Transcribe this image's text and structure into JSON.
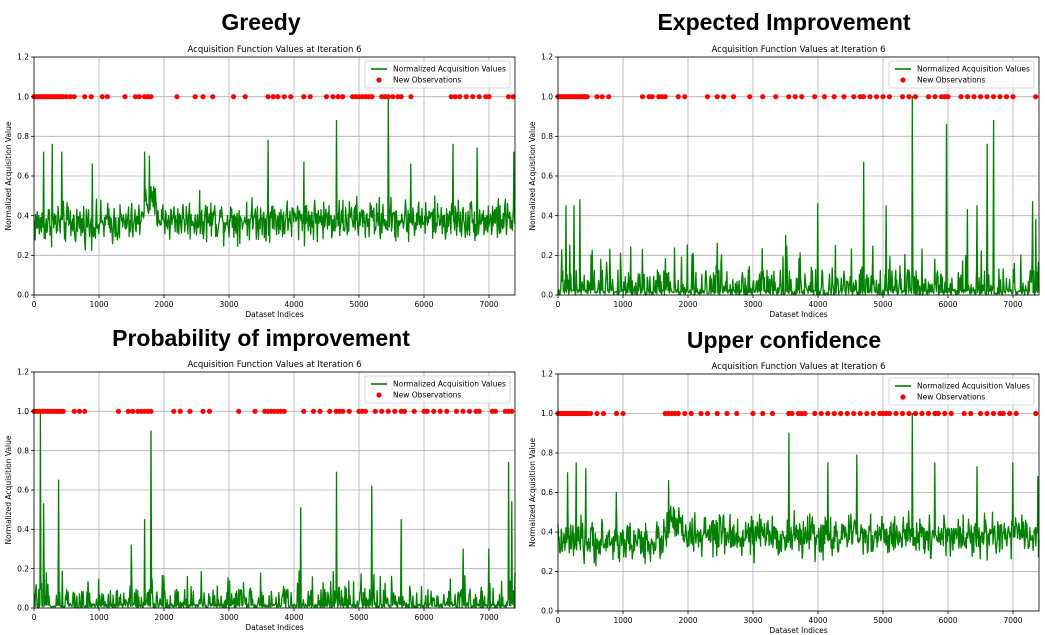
{
  "chart_data": [
    {
      "type": "line",
      "heading": "Greedy",
      "title": "Acquisition Function Values at Iteration 6",
      "xlabel": "Dataset Indices",
      "ylabel": "Normalized Acquisition Value",
      "xlim": [
        0,
        7400
      ],
      "ylim": [
        0,
        1.2
      ],
      "xticks": [
        0,
        1000,
        2000,
        3000,
        4000,
        5000,
        6000,
        7000
      ],
      "yticks": [
        0.0,
        0.2,
        0.4,
        0.6,
        0.8,
        1.0,
        1.2
      ],
      "grid": true,
      "legend_position": "top-right",
      "series": [
        {
          "name": "Normalized Acquisition Values",
          "kind": "line",
          "color": "#008000",
          "profile": {
            "base": [
              [
                0,
                0.36
              ],
              [
                1600,
                0.36
              ],
              [
                1700,
                0.46
              ],
              [
                1850,
                0.46
              ],
              [
                1950,
                0.38
              ],
              [
                7400,
                0.38
              ]
            ],
            "noise": 0.1,
            "min": 0.18,
            "peaks": [
              [
                150,
                0.72
              ],
              [
                280,
                0.76
              ],
              [
                430,
                0.72
              ],
              [
                900,
                0.66
              ],
              [
                1700,
                0.72
              ],
              [
                1780,
                0.7
              ],
              [
                3600,
                0.78
              ],
              [
                4150,
                0.67
              ],
              [
                4650,
                0.88
              ],
              [
                5450,
                1.0
              ],
              [
                5800,
                0.66
              ],
              [
                6450,
                0.76
              ],
              [
                6820,
                0.74
              ],
              [
                7380,
                0.72
              ]
            ]
          }
        },
        {
          "name": "New Observations",
          "kind": "scatter",
          "color": "#ff0000",
          "y": 1.0,
          "x": [
            0,
            30,
            60,
            90,
            120,
            150,
            180,
            210,
            240,
            270,
            300,
            330,
            360,
            390,
            420,
            450,
            500,
            560,
            620,
            780,
            880,
            1050,
            1130,
            1400,
            1560,
            1620,
            1700,
            1750,
            1800,
            2200,
            2480,
            2600,
            2750,
            3070,
            3250,
            3600,
            3680,
            3750,
            3850,
            3950,
            4150,
            4250,
            4500,
            4600,
            4680,
            4750,
            4900,
            4950,
            5000,
            5050,
            5100,
            5150,
            5200,
            5350,
            5400,
            5450,
            5520,
            5600,
            5650,
            5800,
            6420,
            6480,
            6550,
            6650,
            6750,
            6850,
            6950,
            7000,
            7300,
            7370
          ]
        }
      ]
    },
    {
      "type": "line",
      "heading": "Expected Improvement",
      "title": "Acquisition Function Values at Iteration 6",
      "xlabel": "Dataset Indices",
      "ylabel": "Normalized Acquisition Value",
      "xlim": [
        0,
        7400
      ],
      "ylim": [
        0,
        1.2
      ],
      "xticks": [
        0,
        1000,
        2000,
        3000,
        4000,
        5000,
        6000,
        7000
      ],
      "yticks": [
        0.0,
        0.2,
        0.4,
        0.6,
        0.8,
        1.0,
        1.2
      ],
      "grid": true,
      "legend_position": "top-right",
      "series": [
        {
          "name": "Normalized Acquisition Values",
          "kind": "line",
          "color": "#008000",
          "profile": {
            "base": [
              [
                0,
                0.0
              ],
              [
                7400,
                0.0
              ]
            ],
            "noise": 0.08,
            "min": 0.0,
            "spiky": true,
            "peaks": [
              [
                120,
                0.45
              ],
              [
                250,
                0.45
              ],
              [
                340,
                0.48
              ],
              [
                800,
                0.23
              ],
              [
                1300,
                0.23
              ],
              [
                2450,
                0.26
              ],
              [
                3500,
                0.3
              ],
              [
                4000,
                0.46
              ],
              [
                4700,
                0.67
              ],
              [
                5050,
                0.45
              ],
              [
                5450,
                1.0
              ],
              [
                5980,
                0.86
              ],
              [
                6300,
                0.43
              ],
              [
                6450,
                0.45
              ],
              [
                6600,
                0.76
              ],
              [
                6700,
                0.88
              ],
              [
                7300,
                0.47
              ],
              [
                7350,
                0.38
              ]
            ]
          }
        },
        {
          "name": "New Observations",
          "kind": "scatter",
          "color": "#ff0000",
          "y": 1.0,
          "x": [
            0,
            30,
            60,
            90,
            120,
            150,
            180,
            210,
            240,
            270,
            300,
            330,
            360,
            390,
            420,
            450,
            600,
            680,
            780,
            1300,
            1400,
            1450,
            1550,
            1600,
            1650,
            1850,
            1950,
            2300,
            2450,
            2550,
            2700,
            2950,
            3150,
            3350,
            3550,
            3650,
            3750,
            3950,
            4100,
            4250,
            4400,
            4550,
            4650,
            4700,
            4800,
            4900,
            5000,
            5100,
            5300,
            5400,
            5500,
            5700,
            5800,
            5900,
            5950,
            6000,
            6200,
            6300,
            6400,
            6500,
            6600,
            6700,
            6800,
            6900,
            7000,
            7350
          ]
        }
      ]
    },
    {
      "type": "line",
      "heading": "Probability of improvement",
      "title": "Acquisition Function Values at Iteration 6",
      "xlabel": "Dataset Indices",
      "ylabel": "Normalized Acquisition Value",
      "xlim": [
        0,
        7400
      ],
      "ylim": [
        0,
        1.2
      ],
      "xticks": [
        0,
        1000,
        2000,
        3000,
        4000,
        5000,
        6000,
        7000
      ],
      "yticks": [
        0.0,
        0.2,
        0.4,
        0.6,
        0.8,
        1.0,
        1.2
      ],
      "grid": true,
      "legend_position": "top-right",
      "series": [
        {
          "name": "Normalized Acquisition Values",
          "kind": "line",
          "color": "#008000",
          "profile": {
            "base": [
              [
                0,
                0.0
              ],
              [
                7400,
                0.0
              ]
            ],
            "noise": 0.06,
            "min": 0.0,
            "spiky": true,
            "peaks": [
              [
                100,
                1.0
              ],
              [
                150,
                0.53
              ],
              [
                380,
                0.65
              ],
              [
                1500,
                0.32
              ],
              [
                1700,
                0.45
              ],
              [
                1800,
                0.9
              ],
              [
                4100,
                0.51
              ],
              [
                4650,
                0.69
              ],
              [
                5200,
                0.62
              ],
              [
                5650,
                0.45
              ],
              [
                6600,
                0.3
              ],
              [
                7000,
                0.3
              ],
              [
                7300,
                0.74
              ],
              [
                7350,
                0.54
              ]
            ]
          }
        },
        {
          "name": "New Observations",
          "kind": "scatter",
          "color": "#ff0000",
          "y": 1.0,
          "x": [
            0,
            30,
            60,
            90,
            120,
            150,
            180,
            210,
            240,
            270,
            300,
            330,
            360,
            390,
            420,
            450,
            620,
            700,
            780,
            1300,
            1450,
            1520,
            1600,
            1650,
            1700,
            1750,
            1800,
            2150,
            2250,
            2400,
            2600,
            2700,
            3150,
            3400,
            3550,
            3600,
            3650,
            3700,
            3750,
            3800,
            3850,
            4150,
            4300,
            4400,
            4550,
            4650,
            4700,
            4750,
            4850,
            5000,
            5050,
            5100,
            5250,
            5350,
            5450,
            5550,
            5650,
            5700,
            5850,
            6000,
            6050,
            6150,
            6250,
            6350,
            6500,
            6600,
            6700,
            6800,
            6850,
            7050,
            7100,
            7250,
            7300,
            7350
          ]
        }
      ]
    },
    {
      "type": "line",
      "heading": "Upper confidence",
      "title": "Acquisition Function Values at Iteration 6",
      "xlabel": "Dataset Indices",
      "ylabel": "Normalized Acquisition Value",
      "xlim": [
        0,
        7400
      ],
      "ylim": [
        0,
        1.2
      ],
      "xticks": [
        0,
        1000,
        2000,
        3000,
        4000,
        5000,
        6000,
        7000
      ],
      "yticks": [
        0.0,
        0.2,
        0.4,
        0.6,
        0.8,
        1.0,
        1.2
      ],
      "grid": true,
      "legend_position": "top-right",
      "series": [
        {
          "name": "Normalized Acquisition Values",
          "kind": "line",
          "color": "#008000",
          "profile": {
            "base": [
              [
                0,
                0.35
              ],
              [
                1600,
                0.35
              ],
              [
                1700,
                0.44
              ],
              [
                1850,
                0.44
              ],
              [
                1950,
                0.38
              ],
              [
                7400,
                0.38
              ]
            ],
            "noise": 0.1,
            "min": 0.16,
            "peaks": [
              [
                150,
                0.7
              ],
              [
                280,
                0.75
              ],
              [
                430,
                0.72
              ],
              [
                900,
                0.6
              ],
              [
                1700,
                0.66
              ],
              [
                3550,
                0.9
              ],
              [
                4150,
                0.75
              ],
              [
                4600,
                0.79
              ],
              [
                5450,
                1.0
              ],
              [
                5800,
                0.75
              ],
              [
                6450,
                0.73
              ],
              [
                7000,
                0.75
              ],
              [
                7380,
                0.68
              ]
            ]
          }
        },
        {
          "name": "New Observations",
          "kind": "scatter",
          "color": "#ff0000",
          "y": 1.0,
          "x": [
            0,
            30,
            60,
            90,
            120,
            150,
            180,
            210,
            240,
            270,
            300,
            330,
            360,
            390,
            420,
            450,
            500,
            600,
            700,
            900,
            1000,
            1650,
            1700,
            1750,
            1800,
            1850,
            1950,
            2050,
            2200,
            2300,
            2450,
            2600,
            2750,
            3000,
            3150,
            3300,
            3550,
            3600,
            3700,
            3750,
            3800,
            3950,
            4050,
            4150,
            4250,
            4350,
            4450,
            4550,
            4650,
            4750,
            4850,
            4950,
            5000,
            5050,
            5100,
            5200,
            5300,
            5400,
            5500,
            5600,
            5700,
            5800,
            5850,
            5950,
            6050,
            6250,
            6350,
            6500,
            6600,
            6700,
            6800,
            6850,
            6950,
            7050,
            7350
          ]
        }
      ]
    }
  ]
}
